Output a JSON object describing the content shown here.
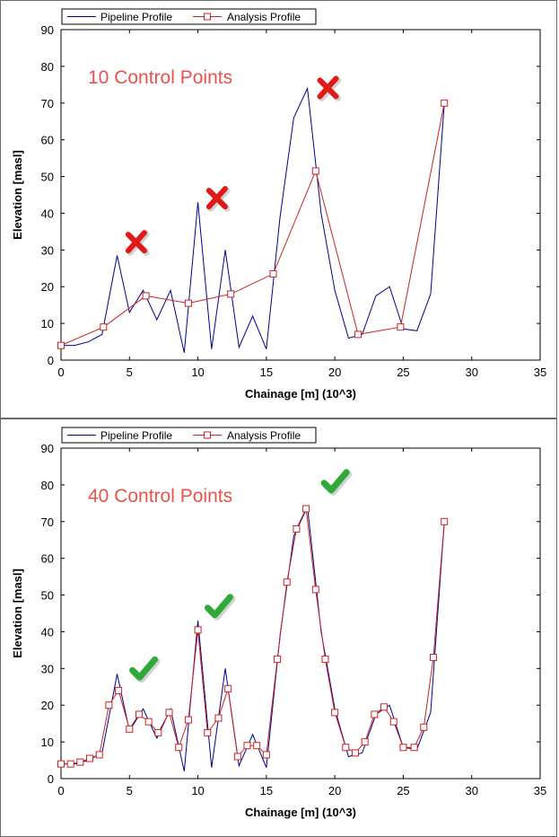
{
  "chart_data": [
    {
      "type": "line",
      "xlabel": "Chainage [m] (10^3)",
      "ylabel": "Elevation [masl]",
      "xlim": [
        0,
        35
      ],
      "ylim": [
        0,
        90
      ],
      "xticks": [
        0,
        5,
        10,
        15,
        20,
        25,
        30,
        35
      ],
      "yticks": [
        0,
        10,
        20,
        30,
        40,
        50,
        60,
        70,
        80,
        90
      ],
      "annotation": "10 Control Points",
      "markers": [
        {
          "type": "cross",
          "x": 5.5,
          "y": 32
        },
        {
          "type": "cross",
          "x": 11.4,
          "y": 44
        },
        {
          "type": "cross",
          "x": 19.5,
          "y": 74
        }
      ],
      "legend": {
        "position": "top-left",
        "entries": [
          "Pipeline Profile",
          "Analysis Profile"
        ]
      },
      "series": [
        {
          "name": "Pipeline Profile",
          "color": "#00008b",
          "marker": "none",
          "x": [
            0,
            1,
            2,
            3,
            4.1,
            5,
            6,
            7,
            8,
            9,
            10,
            11,
            12,
            13,
            14,
            15,
            16,
            17,
            18,
            19,
            20,
            21,
            22,
            23,
            24,
            25,
            26,
            27,
            28
          ],
          "y": [
            4,
            4,
            5,
            7,
            28.5,
            13,
            19,
            11,
            19,
            2,
            43,
            3,
            30,
            3.5,
            12,
            3,
            39,
            66,
            74,
            40,
            19,
            6,
            7,
            17.5,
            20,
            8.5,
            8,
            18,
            70
          ]
        },
        {
          "name": "Analysis Profile",
          "color": "#cc2222",
          "marker": "square",
          "x": [
            0,
            3.1,
            6.2,
            9.3,
            12.4,
            15.5,
            18.6,
            21.7,
            24.8,
            28
          ],
          "y": [
            4,
            9,
            17.5,
            15.5,
            18,
            23.5,
            51.5,
            7,
            9,
            70
          ]
        }
      ]
    },
    {
      "type": "line",
      "xlabel": "Chainage [m] (10^3)",
      "ylabel": "Elevation [masl]",
      "xlim": [
        0,
        35
      ],
      "ylim": [
        0,
        90
      ],
      "xticks": [
        0,
        5,
        10,
        15,
        20,
        25,
        30,
        35
      ],
      "yticks": [
        0,
        10,
        20,
        30,
        40,
        50,
        60,
        70,
        80,
        90
      ],
      "annotation": "40 Control Points",
      "markers": [
        {
          "type": "check",
          "x": 6.0,
          "y": 30
        },
        {
          "type": "check",
          "x": 11.5,
          "y": 47
        },
        {
          "type": "check",
          "x": 20.0,
          "y": 81
        }
      ],
      "legend": {
        "position": "top-left",
        "entries": [
          "Pipeline Profile",
          "Analysis Profile"
        ]
      },
      "series": [
        {
          "name": "Pipeline Profile",
          "color": "#00008b",
          "marker": "none",
          "x": [
            0,
            1,
            2,
            3,
            4.1,
            5,
            6,
            7,
            8,
            9,
            10,
            11,
            12,
            13,
            14,
            15,
            16,
            17,
            18,
            19,
            20,
            21,
            22,
            23,
            24,
            25,
            26,
            27,
            28
          ],
          "y": [
            4,
            4,
            5,
            7,
            28.5,
            13,
            19,
            11,
            19,
            2,
            43,
            3,
            30,
            3.5,
            12,
            3,
            39,
            66,
            74,
            40,
            19,
            6,
            7,
            17.5,
            20,
            8.5,
            8,
            18,
            70
          ]
        },
        {
          "name": "Analysis Profile",
          "color": "#cc2222",
          "marker": "square",
          "x": [
            0,
            0.7,
            1.4,
            2.1,
            2.8,
            3.5,
            4.2,
            5.0,
            5.7,
            6.4,
            7.1,
            7.9,
            8.6,
            9.3,
            10.0,
            10.7,
            11.5,
            12.2,
            12.9,
            13.6,
            14.3,
            15.0,
            15.8,
            16.5,
            17.2,
            17.9,
            18.6,
            19.3,
            20.0,
            20.8,
            21.5,
            22.2,
            22.9,
            23.6,
            24.3,
            25.0,
            25.8,
            26.5,
            27.2,
            28.0
          ],
          "y": [
            4,
            4,
            4.5,
            5.5,
            6.5,
            20,
            24,
            13.5,
            17.5,
            15.5,
            12.5,
            18,
            8.5,
            16,
            40.5,
            12.5,
            16.5,
            24.5,
            6,
            9,
            9,
            6.5,
            32.5,
            53.5,
            68,
            73.5,
            51.5,
            32.5,
            18,
            8.5,
            7,
            10,
            17.5,
            19.5,
            15.5,
            8.5,
            8.5,
            14,
            33,
            70
          ]
        }
      ]
    }
  ]
}
